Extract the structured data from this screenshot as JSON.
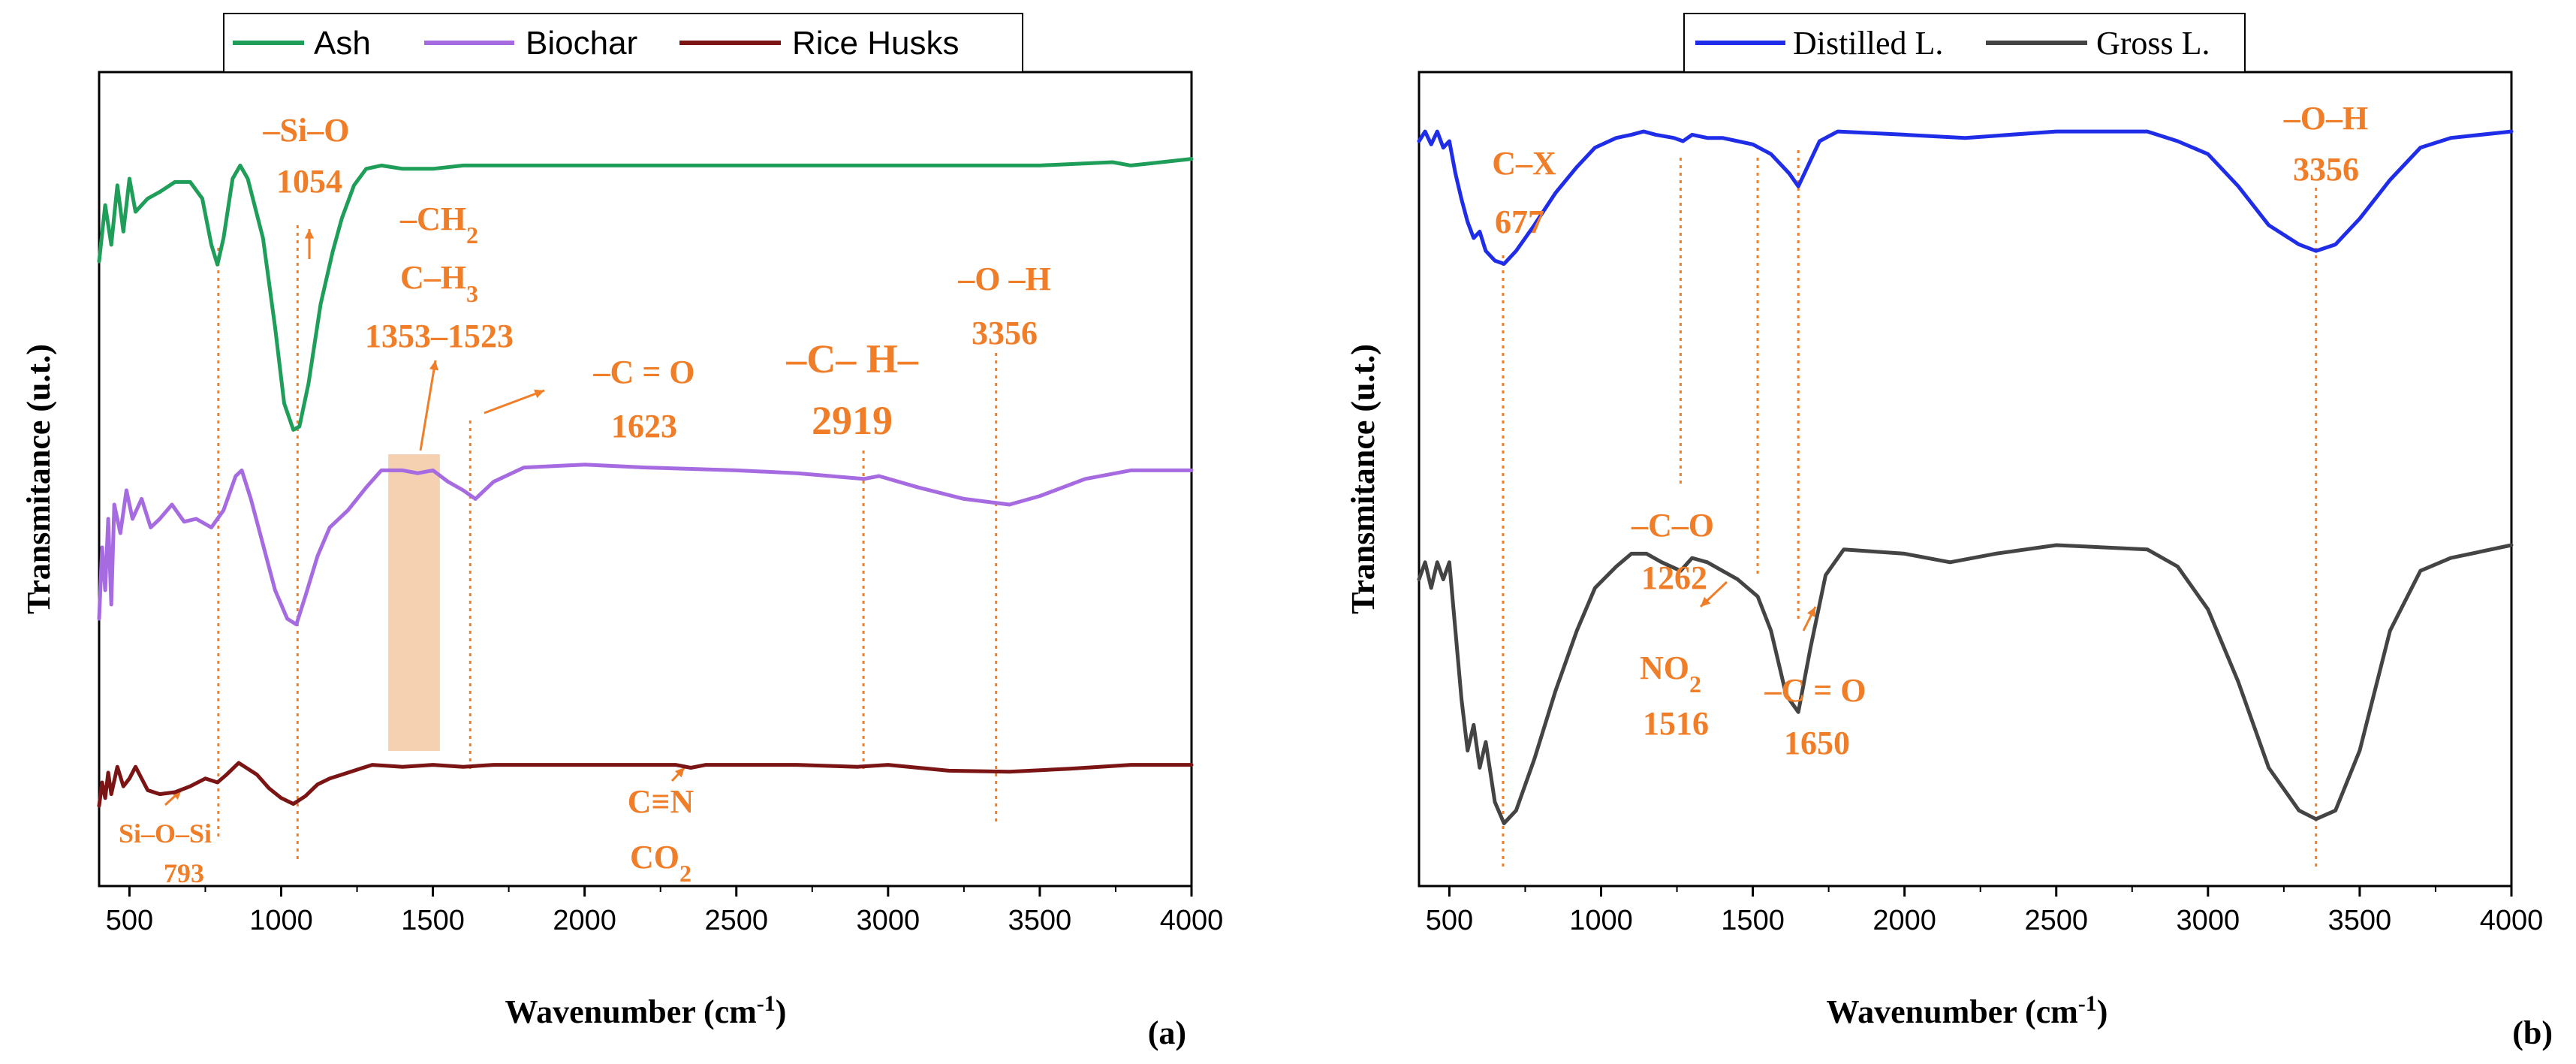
{
  "chart_data": [
    {
      "type": "line",
      "panel_label": "(a)",
      "xlabel": "Wavenumber (cm",
      "xlabel_sup": "-1",
      "xlabel_close": ")",
      "ylabel": "Transmitance (u.t.)",
      "xlim": [
        400,
        4000
      ],
      "xticks": [
        500,
        1000,
        1500,
        2000,
        2500,
        3000,
        3500,
        4000
      ],
      "legend_position": "top-center",
      "series": [
        {
          "name": "Ash",
          "color": "#1f9e5a",
          "points": [
            [
              400,
              0.55
            ],
            [
              420,
              0.72
            ],
            [
              440,
              0.6
            ],
            [
              460,
              0.78
            ],
            [
              480,
              0.64
            ],
            [
              500,
              0.8
            ],
            [
              520,
              0.7
            ],
            [
              560,
              0.74
            ],
            [
              600,
              0.76
            ],
            [
              650,
              0.79
            ],
            [
              700,
              0.79
            ],
            [
              740,
              0.74
            ],
            [
              770,
              0.6
            ],
            [
              790,
              0.54
            ],
            [
              810,
              0.62
            ],
            [
              840,
              0.8
            ],
            [
              865,
              0.84
            ],
            [
              890,
              0.8
            ],
            [
              940,
              0.62
            ],
            [
              980,
              0.35
            ],
            [
              1010,
              0.12
            ],
            [
              1040,
              0.04
            ],
            [
              1060,
              0.05
            ],
            [
              1090,
              0.18
            ],
            [
              1130,
              0.42
            ],
            [
              1170,
              0.58
            ],
            [
              1200,
              0.68
            ],
            [
              1240,
              0.78
            ],
            [
              1280,
              0.83
            ],
            [
              1330,
              0.84
            ],
            [
              1400,
              0.83
            ],
            [
              1500,
              0.83
            ],
            [
              1600,
              0.84
            ],
            [
              1800,
              0.84
            ],
            [
              2000,
              0.84
            ],
            [
              2500,
              0.84
            ],
            [
              3000,
              0.84
            ],
            [
              3500,
              0.84
            ],
            [
              3740,
              0.85
            ],
            [
              3800,
              0.84
            ],
            [
              4000,
              0.86
            ]
          ]
        },
        {
          "name": "Biochar",
          "color": "#a66be0",
          "points": [
            [
              400,
              0.2
            ],
            [
              410,
              0.45
            ],
            [
              420,
              0.3
            ],
            [
              430,
              0.55
            ],
            [
              440,
              0.25
            ],
            [
              450,
              0.6
            ],
            [
              470,
              0.5
            ],
            [
              490,
              0.65
            ],
            [
              510,
              0.55
            ],
            [
              540,
              0.62
            ],
            [
              570,
              0.52
            ],
            [
              600,
              0.55
            ],
            [
              640,
              0.6
            ],
            [
              680,
              0.54
            ],
            [
              720,
              0.55
            ],
            [
              770,
              0.52
            ],
            [
              810,
              0.58
            ],
            [
              850,
              0.7
            ],
            [
              870,
              0.72
            ],
            [
              900,
              0.62
            ],
            [
              940,
              0.46
            ],
            [
              980,
              0.3
            ],
            [
              1020,
              0.2
            ],
            [
              1050,
              0.18
            ],
            [
              1080,
              0.28
            ],
            [
              1120,
              0.42
            ],
            [
              1160,
              0.52
            ],
            [
              1220,
              0.58
            ],
            [
              1280,
              0.66
            ],
            [
              1330,
              0.72
            ],
            [
              1400,
              0.72
            ],
            [
              1450,
              0.71
            ],
            [
              1500,
              0.72
            ],
            [
              1550,
              0.68
            ],
            [
              1600,
              0.65
            ],
            [
              1640,
              0.62
            ],
            [
              1700,
              0.68
            ],
            [
              1800,
              0.73
            ],
            [
              2000,
              0.74
            ],
            [
              2200,
              0.73
            ],
            [
              2500,
              0.72
            ],
            [
              2700,
              0.71
            ],
            [
              2920,
              0.69
            ],
            [
              2970,
              0.7
            ],
            [
              3100,
              0.66
            ],
            [
              3250,
              0.62
            ],
            [
              3400,
              0.6
            ],
            [
              3500,
              0.63
            ],
            [
              3650,
              0.69
            ],
            [
              3800,
              0.72
            ],
            [
              4000,
              0.72
            ]
          ]
        },
        {
          "name": "Rice Husks",
          "color": "#7b1414",
          "points": [
            [
              400,
              0.18
            ],
            [
              410,
              0.3
            ],
            [
              420,
              0.22
            ],
            [
              430,
              0.35
            ],
            [
              440,
              0.24
            ],
            [
              460,
              0.38
            ],
            [
              480,
              0.28
            ],
            [
              500,
              0.32
            ],
            [
              520,
              0.38
            ],
            [
              560,
              0.26
            ],
            [
              600,
              0.24
            ],
            [
              650,
              0.25
            ],
            [
              700,
              0.28
            ],
            [
              750,
              0.32
            ],
            [
              790,
              0.3
            ],
            [
              820,
              0.34
            ],
            [
              860,
              0.4
            ],
            [
              880,
              0.38
            ],
            [
              920,
              0.34
            ],
            [
              960,
              0.27
            ],
            [
              1000,
              0.22
            ],
            [
              1040,
              0.19
            ],
            [
              1080,
              0.23
            ],
            [
              1120,
              0.29
            ],
            [
              1160,
              0.32
            ],
            [
              1200,
              0.34
            ],
            [
              1260,
              0.37
            ],
            [
              1300,
              0.39
            ],
            [
              1400,
              0.38
            ],
            [
              1500,
              0.39
            ],
            [
              1600,
              0.38
            ],
            [
              1700,
              0.39
            ],
            [
              2000,
              0.39
            ],
            [
              2300,
              0.39
            ],
            [
              2350,
              0.375
            ],
            [
              2400,
              0.39
            ],
            [
              2700,
              0.39
            ],
            [
              2900,
              0.38
            ],
            [
              3000,
              0.39
            ],
            [
              3200,
              0.36
            ],
            [
              3400,
              0.355
            ],
            [
              3600,
              0.37
            ],
            [
              3800,
              0.39
            ],
            [
              4000,
              0.39
            ]
          ]
        }
      ],
      "annotations": [
        {
          "id": "ann-si-o-si",
          "lines": [
            "Si–O–Si",
            "793"
          ],
          "marker_x": 793
        },
        {
          "id": "ann-si-o",
          "lines": [
            "–Si–O",
            "1054"
          ],
          "marker_x": 1054
        },
        {
          "id": "ann-ch2-ch3",
          "lines": [
            "–CH",
            "C–H",
            "1353–1523"
          ],
          "subscripts": [
            "2",
            "3"
          ],
          "marker_range": [
            1353,
            1523
          ]
        },
        {
          "id": "ann-c-o",
          "lines": [
            "–C = O",
            "1623"
          ],
          "marker_x": 1623
        },
        {
          "id": "ann-ch",
          "lines": [
            "–C– H–",
            "2919"
          ],
          "marker_x": 2919
        },
        {
          "id": "ann-oh",
          "lines": [
            "–O –H",
            "3356"
          ],
          "marker_x": 3356
        },
        {
          "id": "ann-cn-co2",
          "lines": [
            "C≡N",
            "CO"
          ],
          "subscripts": [
            "",
            "2"
          ],
          "marker_x": 2350
        }
      ]
    },
    {
      "type": "line",
      "panel_label": "(b)",
      "xlabel": "Wavenumber (cm",
      "xlabel_sup": "-1",
      "xlabel_close": ")",
      "ylabel": "Transmitance (u.t.)",
      "xlim": [
        400,
        4000
      ],
      "xticks": [
        500,
        1000,
        1500,
        2000,
        2500,
        3000,
        3500,
        4000
      ],
      "legend_position": "top-center",
      "series": [
        {
          "name": "Distilled L.",
          "color": "#1f2de8",
          "points": [
            [
              400,
              0.9
            ],
            [
              420,
              0.93
            ],
            [
              440,
              0.89
            ],
            [
              460,
              0.93
            ],
            [
              480,
              0.88
            ],
            [
              500,
              0.9
            ],
            [
              520,
              0.8
            ],
            [
              540,
              0.72
            ],
            [
              560,
              0.65
            ],
            [
              580,
              0.6
            ],
            [
              600,
              0.62
            ],
            [
              620,
              0.56
            ],
            [
              650,
              0.53
            ],
            [
              680,
              0.52
            ],
            [
              720,
              0.56
            ],
            [
              780,
              0.64
            ],
            [
              850,
              0.74
            ],
            [
              920,
              0.82
            ],
            [
              980,
              0.88
            ],
            [
              1050,
              0.91
            ],
            [
              1100,
              0.92
            ],
            [
              1140,
              0.93
            ],
            [
              1180,
              0.92
            ],
            [
              1240,
              0.91
            ],
            [
              1270,
              0.9
            ],
            [
              1300,
              0.92
            ],
            [
              1350,
              0.91
            ],
            [
              1400,
              0.91
            ],
            [
              1450,
              0.9
            ],
            [
              1500,
              0.89
            ],
            [
              1560,
              0.86
            ],
            [
              1620,
              0.8
            ],
            [
              1650,
              0.76
            ],
            [
              1680,
              0.82
            ],
            [
              1720,
              0.9
            ],
            [
              1780,
              0.93
            ],
            [
              2000,
              0.92
            ],
            [
              2200,
              0.91
            ],
            [
              2500,
              0.93
            ],
            [
              2800,
              0.93
            ],
            [
              2900,
              0.9
            ],
            [
              3000,
              0.86
            ],
            [
              3100,
              0.76
            ],
            [
              3200,
              0.64
            ],
            [
              3300,
              0.58
            ],
            [
              3356,
              0.56
            ],
            [
              3420,
              0.58
            ],
            [
              3500,
              0.66
            ],
            [
              3600,
              0.78
            ],
            [
              3700,
              0.88
            ],
            [
              3800,
              0.91
            ],
            [
              4000,
              0.93
            ]
          ]
        },
        {
          "name": "Gross L.",
          "color": "#444444",
          "points": [
            [
              400,
              0.62
            ],
            [
              420,
              0.66
            ],
            [
              440,
              0.6
            ],
            [
              460,
              0.66
            ],
            [
              480,
              0.62
            ],
            [
              500,
              0.66
            ],
            [
              520,
              0.5
            ],
            [
              540,
              0.34
            ],
            [
              560,
              0.22
            ],
            [
              580,
              0.28
            ],
            [
              600,
              0.18
            ],
            [
              620,
              0.24
            ],
            [
              650,
              0.1
            ],
            [
              680,
              0.05
            ],
            [
              720,
              0.08
            ],
            [
              780,
              0.2
            ],
            [
              850,
              0.36
            ],
            [
              920,
              0.5
            ],
            [
              980,
              0.6
            ],
            [
              1050,
              0.65
            ],
            [
              1100,
              0.68
            ],
            [
              1150,
              0.68
            ],
            [
              1200,
              0.66
            ],
            [
              1262,
              0.64
            ],
            [
              1300,
              0.67
            ],
            [
              1350,
              0.66
            ],
            [
              1400,
              0.64
            ],
            [
              1450,
              0.62
            ],
            [
              1516,
              0.58
            ],
            [
              1560,
              0.5
            ],
            [
              1610,
              0.35
            ],
            [
              1650,
              0.31
            ],
            [
              1690,
              0.46
            ],
            [
              1740,
              0.63
            ],
            [
              1800,
              0.69
            ],
            [
              2000,
              0.68
            ],
            [
              2150,
              0.66
            ],
            [
              2300,
              0.68
            ],
            [
              2500,
              0.7
            ],
            [
              2800,
              0.69
            ],
            [
              2900,
              0.65
            ],
            [
              3000,
              0.55
            ],
            [
              3100,
              0.38
            ],
            [
              3200,
              0.18
            ],
            [
              3300,
              0.08
            ],
            [
              3356,
              0.06
            ],
            [
              3420,
              0.08
            ],
            [
              3500,
              0.22
            ],
            [
              3600,
              0.5
            ],
            [
              3700,
              0.64
            ],
            [
              3800,
              0.67
            ],
            [
              4000,
              0.7
            ]
          ]
        }
      ],
      "annotations": [
        {
          "id": "ann-cx",
          "lines": [
            "C–X",
            "677"
          ],
          "marker_x": 677
        },
        {
          "id": "ann-c-o-single",
          "lines": [
            "–C–O",
            "1262"
          ],
          "marker_x": 1262
        },
        {
          "id": "ann-no2",
          "lines": [
            "NO",
            "1516"
          ],
          "subscripts": [
            "2",
            ""
          ],
          "marker_x": 1516
        },
        {
          "id": "ann-c-o-double",
          "lines": [
            "–C = O",
            "1650"
          ],
          "marker_x": 1650
        },
        {
          "id": "ann-oh-b",
          "lines": [
            "–O–H",
            "3356"
          ],
          "marker_x": 3356
        }
      ]
    }
  ]
}
